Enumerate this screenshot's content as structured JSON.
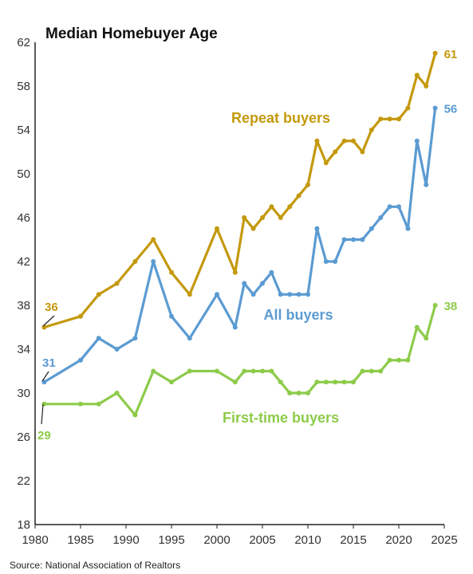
{
  "chart_data": {
    "type": "line",
    "title": "Median Homebuyer Age",
    "source": "Source: National Association of Realtors",
    "xlim": [
      1980,
      2025
    ],
    "ylim": [
      18,
      62
    ],
    "xticks": [
      1980,
      1985,
      1990,
      1995,
      2000,
      2005,
      2010,
      2015,
      2020,
      2025
    ],
    "yticks": [
      18,
      22,
      26,
      30,
      34,
      38,
      42,
      46,
      50,
      54,
      58,
      62
    ],
    "grid": false,
    "series": [
      {
        "name": "Repeat buyers",
        "color": "#C4990C",
        "start_label": "36",
        "end_label": "61",
        "x": [
          1981,
          1985,
          1987,
          1989,
          1991,
          1993,
          1995,
          1997,
          2000,
          2002,
          2003,
          2004,
          2005,
          2006,
          2007,
          2008,
          2009,
          2010,
          2011,
          2012,
          2013,
          2014,
          2015,
          2016,
          2017,
          2018,
          2019,
          2020,
          2021,
          2022,
          2023,
          2024
        ],
        "y": [
          36,
          37,
          39,
          40,
          42,
          44,
          41,
          39,
          45,
          41,
          46,
          45,
          46,
          47,
          46,
          47,
          48,
          49,
          53,
          51,
          52,
          53,
          53,
          52,
          54,
          55,
          55,
          55,
          56,
          59,
          58,
          61
        ]
      },
      {
        "name": "All buyers",
        "color": "#5B9BD2",
        "start_label": "31",
        "end_label": "56",
        "x": [
          1981,
          1985,
          1987,
          1989,
          1991,
          1993,
          1995,
          1997,
          2000,
          2002,
          2003,
          2004,
          2005,
          2006,
          2007,
          2008,
          2009,
          2010,
          2011,
          2012,
          2013,
          2014,
          2015,
          2016,
          2017,
          2018,
          2019,
          2020,
          2021,
          2022,
          2023,
          2024
        ],
        "y": [
          31,
          33,
          35,
          34,
          35,
          42,
          37,
          35,
          39,
          36,
          40,
          39,
          40,
          41,
          39,
          39,
          39,
          39,
          45,
          42,
          42,
          44,
          44,
          44,
          45,
          46,
          47,
          47,
          45,
          53,
          49,
          56
        ]
      },
      {
        "name": "First-time buyers",
        "color": "#8DCB4A",
        "start_label": "29",
        "end_label": "38",
        "x": [
          1981,
          1985,
          1987,
          1989,
          1991,
          1993,
          1995,
          1997,
          2000,
          2002,
          2003,
          2004,
          2005,
          2006,
          2007,
          2008,
          2009,
          2010,
          2011,
          2012,
          2013,
          2014,
          2015,
          2016,
          2017,
          2018,
          2019,
          2020,
          2021,
          2022,
          2023,
          2024
        ],
        "y": [
          29,
          29,
          29,
          30,
          28,
          32,
          31,
          32,
          32,
          31,
          32,
          32,
          32,
          32,
          31,
          30,
          30,
          30,
          31,
          31,
          31,
          31,
          31,
          32,
          32,
          32,
          33,
          33,
          33,
          36,
          35,
          38
        ]
      }
    ]
  }
}
